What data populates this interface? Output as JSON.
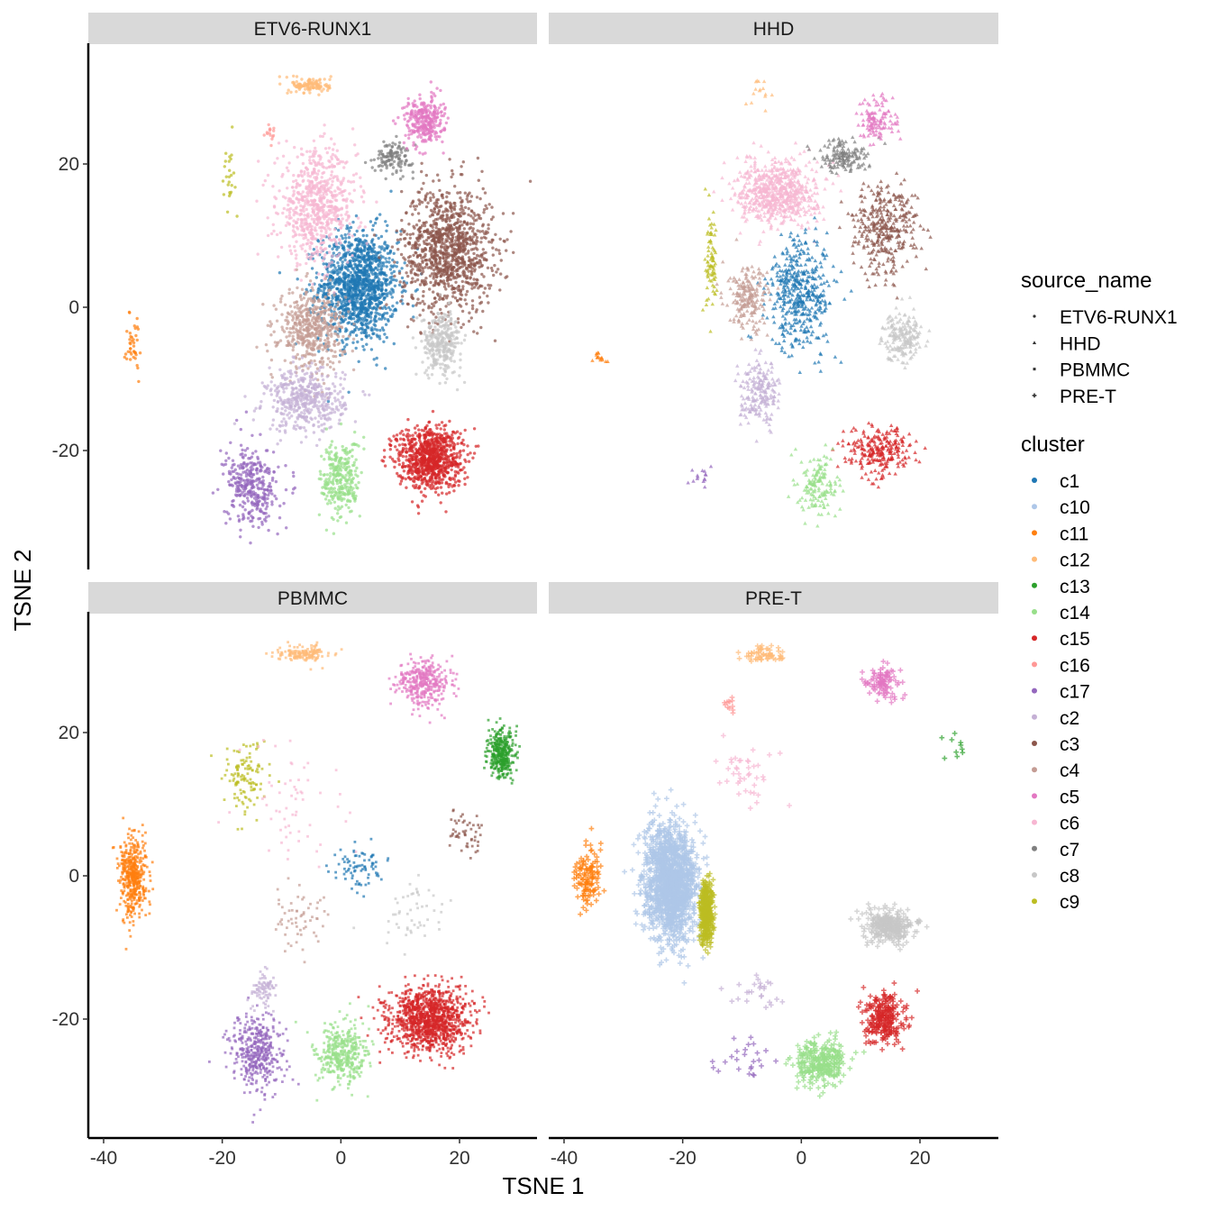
{
  "chart_data": {
    "type": "scatter",
    "xlabel": "TSNE 1",
    "ylabel": "TSNE 2",
    "xlim": [
      -42,
      33
    ],
    "ylim": [
      -36,
      34
    ],
    "xticks": [
      -40,
      -20,
      0,
      20
    ],
    "yticks": [
      -20,
      0,
      20
    ],
    "grid": false,
    "legend_position": "right",
    "facets": [
      "ETV6-RUNX1",
      "HHD",
      "PBMMC",
      "PRE-T"
    ],
    "shape_legend": {
      "title": "source_name",
      "entries": [
        {
          "label": "ETV6-RUNX1",
          "shape": "dot"
        },
        {
          "label": "HHD",
          "shape": "triangle"
        },
        {
          "label": "PBMMC",
          "shape": "square"
        },
        {
          "label": "PRE-T",
          "shape": "plus"
        }
      ]
    },
    "color_legend": {
      "title": "cluster",
      "entries": [
        {
          "label": "c1",
          "color": "#1f77b4"
        },
        {
          "label": "c10",
          "color": "#aec7e8"
        },
        {
          "label": "c11",
          "color": "#ff7f0e"
        },
        {
          "label": "c12",
          "color": "#ffbb78"
        },
        {
          "label": "c13",
          "color": "#2ca02c"
        },
        {
          "label": "c14",
          "color": "#98df8a"
        },
        {
          "label": "c15",
          "color": "#d62728"
        },
        {
          "label": "c16",
          "color": "#ff9896"
        },
        {
          "label": "c17",
          "color": "#9467bd"
        },
        {
          "label": "c2",
          "color": "#c5b0d5"
        },
        {
          "label": "c3",
          "color": "#8c564b"
        },
        {
          "label": "c4",
          "color": "#c49c94"
        },
        {
          "label": "c5",
          "color": "#e377c2"
        },
        {
          "label": "c6",
          "color": "#f7b6d2"
        },
        {
          "label": "c7",
          "color": "#7f7f7f"
        },
        {
          "label": "c8",
          "color": "#c7c7c7"
        },
        {
          "label": "c9",
          "color": "#bcbd22"
        }
      ]
    },
    "cluster_centers": {
      "c1": [
        2,
        3
      ],
      "c10": [
        -21,
        -1
      ],
      "c11": [
        -35,
        -1
      ],
      "c12": [
        -5,
        30
      ],
      "c13": [
        27,
        17
      ],
      "c14": [
        -1,
        -25
      ],
      "c15": [
        14,
        -21
      ],
      "c16": [
        -13,
        24
      ],
      "c17": [
        -15,
        -27
      ],
      "c2": [
        -6,
        -13
      ],
      "c3": [
        18,
        8
      ],
      "c4": [
        -5,
        -3
      ],
      "c5": [
        14,
        27
      ],
      "c6": [
        -3,
        15
      ],
      "c7": [
        8,
        21
      ],
      "c8": [
        16,
        -5
      ],
      "c9": [
        -17,
        7
      ]
    },
    "panels": [
      {
        "facet": "ETV6-RUNX1",
        "shape": "dot",
        "clusters": [
          {
            "cluster": "c1",
            "center": [
              3,
              3
            ],
            "spread": [
              6,
              7
            ],
            "n": 1300
          },
          {
            "cluster": "c3",
            "center": [
              18,
              8
            ],
            "spread": [
              7,
              8
            ],
            "n": 1100
          },
          {
            "cluster": "c6",
            "center": [
              -4,
              14
            ],
            "spread": [
              6,
              7
            ],
            "n": 700
          },
          {
            "cluster": "c4",
            "center": [
              -5,
              -3
            ],
            "spread": [
              5,
              5
            ],
            "n": 500
          },
          {
            "cluster": "c2",
            "center": [
              -6,
              -13
            ],
            "spread": [
              6,
              4
            ],
            "n": 450
          },
          {
            "cluster": "c8",
            "center": [
              17,
              -5
            ],
            "spread": [
              3,
              4
            ],
            "n": 300
          },
          {
            "cluster": "c7",
            "center": [
              9,
              21
            ],
            "spread": [
              3,
              2
            ],
            "n": 120
          },
          {
            "cluster": "c5",
            "center": [
              14,
              26
            ],
            "spread": [
              3,
              3
            ],
            "n": 300
          },
          {
            "cluster": "c12",
            "center": [
              -5,
              31
            ],
            "spread": [
              3,
              1
            ],
            "n": 120
          },
          {
            "cluster": "c15",
            "center": [
              15,
              -21
            ],
            "spread": [
              5,
              4
            ],
            "n": 900
          },
          {
            "cluster": "c14",
            "center": [
              0,
              -24
            ],
            "spread": [
              3,
              5
            ],
            "n": 300
          },
          {
            "cluster": "c17",
            "center": [
              -15,
              -25
            ],
            "spread": [
              4,
              5
            ],
            "n": 350
          },
          {
            "cluster": "c11",
            "center": [
              -35,
              -5
            ],
            "spread": [
              1,
              4
            ],
            "n": 40
          },
          {
            "cluster": "c9",
            "center": [
              -19,
              19
            ],
            "spread": [
              1,
              4
            ],
            "n": 25
          },
          {
            "cluster": "c16",
            "center": [
              -12,
              24
            ],
            "spread": [
              1,
              1
            ],
            "n": 15
          }
        ]
      },
      {
        "facet": "HHD",
        "shape": "triangle",
        "clusters": [
          {
            "cluster": "c6",
            "center": [
              -4,
              16
            ],
            "spread": [
              6,
              4
            ],
            "n": 700
          },
          {
            "cluster": "c1",
            "center": [
              0,
              2
            ],
            "spread": [
              5,
              7
            ],
            "n": 450
          },
          {
            "cluster": "c3",
            "center": [
              14,
              11
            ],
            "spread": [
              5,
              6
            ],
            "n": 350
          },
          {
            "cluster": "c7",
            "center": [
              7,
              21
            ],
            "spread": [
              4,
              2
            ],
            "n": 150
          },
          {
            "cluster": "c4",
            "center": [
              -9,
              1
            ],
            "spread": [
              3,
              4
            ],
            "n": 200
          },
          {
            "cluster": "c9",
            "center": [
              -15,
              6
            ],
            "spread": [
              1,
              6
            ],
            "n": 80
          },
          {
            "cluster": "c2",
            "center": [
              -7,
              -12
            ],
            "spread": [
              3,
              4
            ],
            "n": 200
          },
          {
            "cluster": "c8",
            "center": [
              17,
              -4
            ],
            "spread": [
              3,
              3
            ],
            "n": 200
          },
          {
            "cluster": "c5",
            "center": [
              13,
              26
            ],
            "spread": [
              3,
              3
            ],
            "n": 120
          },
          {
            "cluster": "c15",
            "center": [
              13,
              -20
            ],
            "spread": [
              5,
              3
            ],
            "n": 250
          },
          {
            "cluster": "c14",
            "center": [
              3,
              -25
            ],
            "spread": [
              3,
              4
            ],
            "n": 150
          },
          {
            "cluster": "c17",
            "center": [
              -17,
              -23
            ],
            "spread": [
              2,
              2
            ],
            "n": 15
          },
          {
            "cluster": "c11",
            "center": [
              -34,
              -7
            ],
            "spread": [
              1,
              1
            ],
            "n": 15
          },
          {
            "cluster": "c12",
            "center": [
              -7,
              30
            ],
            "spread": [
              2,
              2
            ],
            "n": 15
          }
        ]
      },
      {
        "facet": "PBMMC",
        "shape": "square",
        "clusters": [
          {
            "cluster": "c11",
            "center": [
              -35,
              0
            ],
            "spread": [
              2,
              5
            ],
            "n": 450
          },
          {
            "cluster": "c12",
            "center": [
              -6,
              31
            ],
            "spread": [
              4,
              1
            ],
            "n": 150
          },
          {
            "cluster": "c5",
            "center": [
              14,
              27
            ],
            "spread": [
              4,
              3
            ],
            "n": 350
          },
          {
            "cluster": "c13",
            "center": [
              27,
              17
            ],
            "spread": [
              2,
              3
            ],
            "n": 350
          },
          {
            "cluster": "c15",
            "center": [
              15,
              -20
            ],
            "spread": [
              6,
              4
            ],
            "n": 1200
          },
          {
            "cluster": "c14",
            "center": [
              0,
              -25
            ],
            "spread": [
              4,
              4
            ],
            "n": 400
          },
          {
            "cluster": "c17",
            "center": [
              -14,
              -25
            ],
            "spread": [
              4,
              5
            ],
            "n": 400
          },
          {
            "cluster": "c2",
            "center": [
              -13,
              -16
            ],
            "spread": [
              2,
              2
            ],
            "n": 80
          },
          {
            "cluster": "c9",
            "center": [
              -16,
              14
            ],
            "spread": [
              3,
              5
            ],
            "n": 120
          },
          {
            "cluster": "c1",
            "center": [
              3,
              1
            ],
            "spread": [
              4,
              3
            ],
            "n": 80
          },
          {
            "cluster": "c3",
            "center": [
              21,
              6
            ],
            "spread": [
              3,
              3
            ],
            "n": 50
          },
          {
            "cluster": "c6",
            "center": [
              -8,
              10
            ],
            "spread": [
              8,
              8
            ],
            "n": 60
          },
          {
            "cluster": "c8",
            "center": [
              12,
              -5
            ],
            "spread": [
              6,
              5
            ],
            "n": 50
          },
          {
            "cluster": "c4",
            "center": [
              -7,
              -6
            ],
            "spread": [
              5,
              4
            ],
            "n": 60
          }
        ]
      },
      {
        "facet": "PRE-T",
        "shape": "plus",
        "clusters": [
          {
            "cluster": "c10",
            "center": [
              -22,
              -1
            ],
            "spread": [
              4,
              7
            ],
            "n": 1500
          },
          {
            "cluster": "c9",
            "center": [
              -16,
              -5
            ],
            "spread": [
              1,
              4
            ],
            "n": 400
          },
          {
            "cluster": "c11",
            "center": [
              -36,
              0
            ],
            "spread": [
              2,
              4
            ],
            "n": 120
          },
          {
            "cluster": "c8",
            "center": [
              15,
              -7
            ],
            "spread": [
              4,
              2
            ],
            "n": 300
          },
          {
            "cluster": "c15",
            "center": [
              14,
              -20
            ],
            "spread": [
              3,
              3
            ],
            "n": 250
          },
          {
            "cluster": "c14",
            "center": [
              3,
              -26
            ],
            "spread": [
              4,
              3
            ],
            "n": 300
          },
          {
            "cluster": "c5",
            "center": [
              14,
              27
            ],
            "spread": [
              3,
              2
            ],
            "n": 100
          },
          {
            "cluster": "c12",
            "center": [
              -6,
              31
            ],
            "spread": [
              3,
              1
            ],
            "n": 60
          },
          {
            "cluster": "c6",
            "center": [
              -10,
              14
            ],
            "spread": [
              5,
              4
            ],
            "n": 40
          },
          {
            "cluster": "c16",
            "center": [
              -12,
              24
            ],
            "spread": [
              1,
              1
            ],
            "n": 12
          },
          {
            "cluster": "c13",
            "center": [
              26,
              18
            ],
            "spread": [
              2,
              2
            ],
            "n": 10
          },
          {
            "cluster": "c2",
            "center": [
              -8,
              -16
            ],
            "spread": [
              4,
              2
            ],
            "n": 25
          },
          {
            "cluster": "c17",
            "center": [
              -10,
              -26
            ],
            "spread": [
              4,
              3
            ],
            "n": 25
          }
        ]
      }
    ]
  }
}
